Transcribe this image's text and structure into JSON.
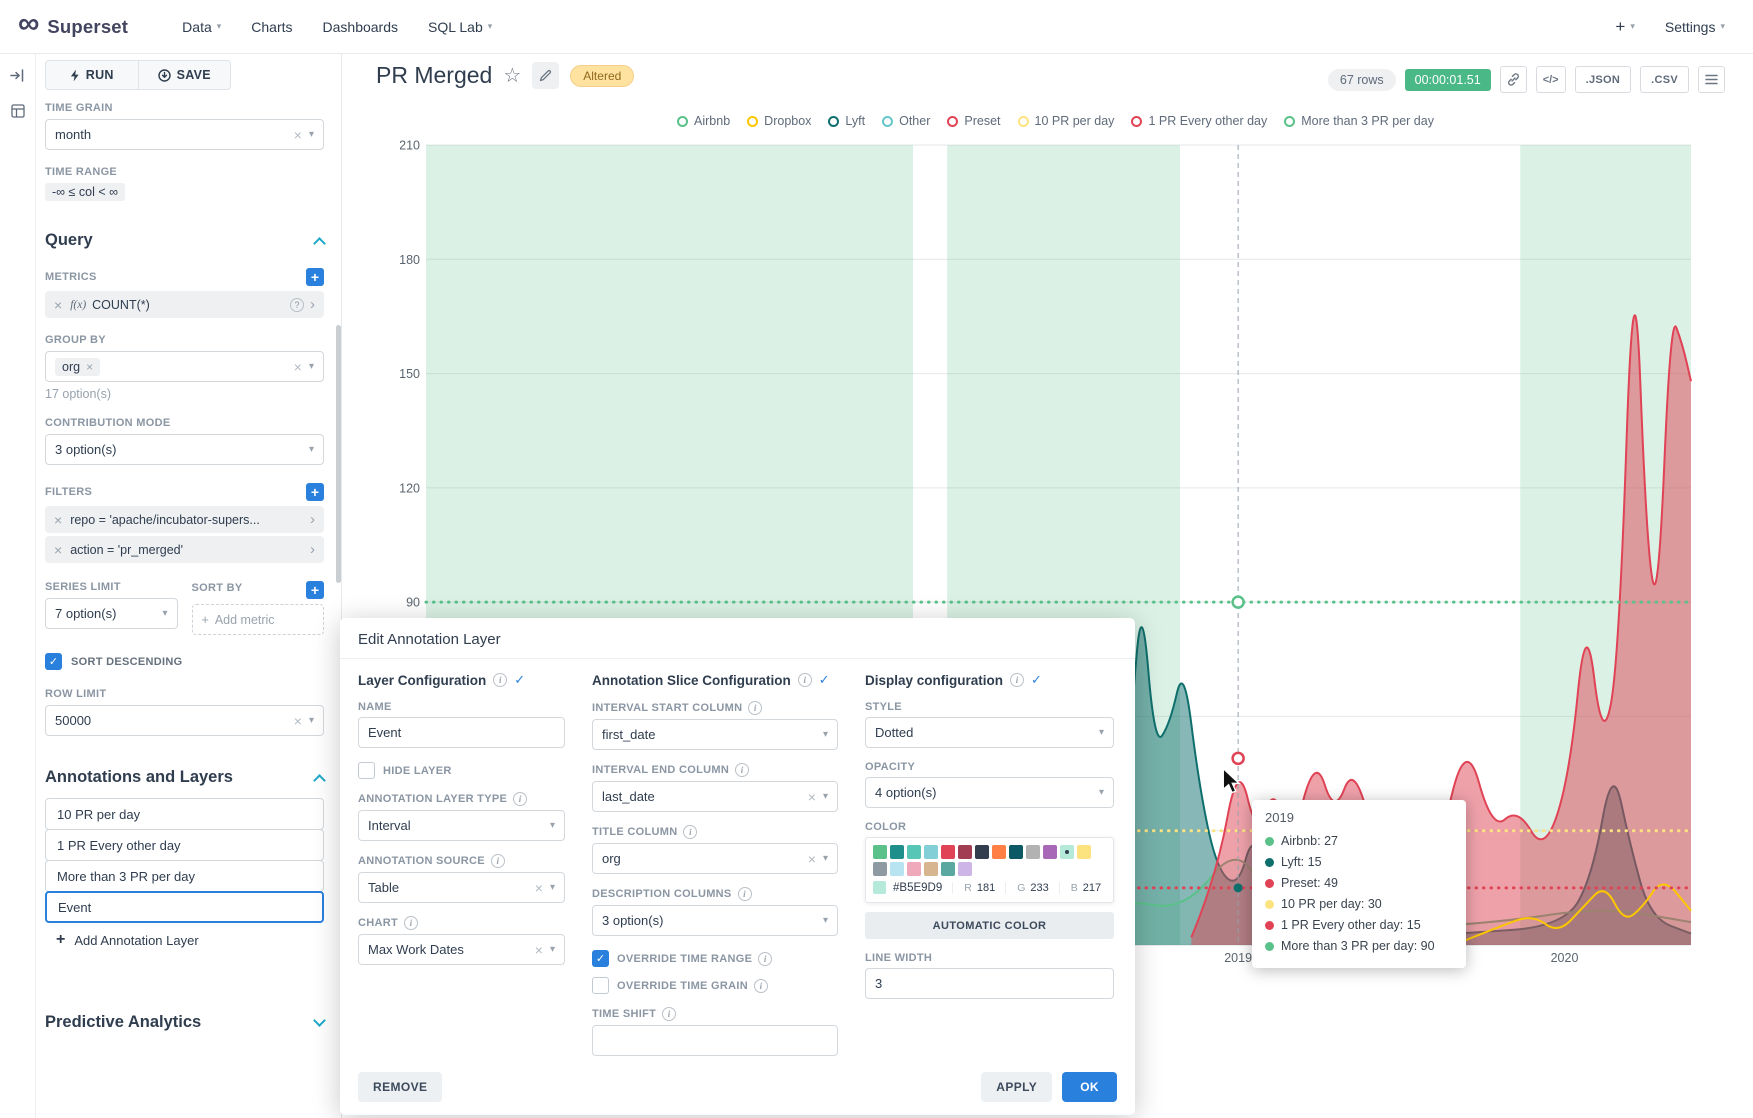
{
  "navbar": {
    "brand": "Superset",
    "menus": [
      "Data",
      "Charts",
      "Dashboards",
      "SQL Lab"
    ],
    "menu_carets": [
      true,
      false,
      false,
      true
    ],
    "plus_label": "+",
    "settings_label": "Settings"
  },
  "panel": {
    "run_label": "RUN",
    "save_label": "SAVE",
    "time_grain_label": "TIME GRAIN",
    "time_grain_value": "month",
    "time_range_label": "TIME RANGE",
    "time_range_value": "-∞ ≤ col < ∞",
    "query_title": "Query",
    "metrics_label": "METRICS",
    "metric_fx": "f(x)",
    "metric_value": "COUNT(*)",
    "group_by_label": "GROUP BY",
    "group_by_tag": "org",
    "group_by_hint": "17 option(s)",
    "contribution_label": "CONTRIBUTION MODE",
    "contribution_value": "3 option(s)",
    "filters_label": "FILTERS",
    "filters": [
      "repo = 'apache/incubator-supers...",
      "action = 'pr_merged'"
    ],
    "series_limit_label": "SERIES LIMIT",
    "series_limit_value": "7 option(s)",
    "sort_by_label": "SORT BY",
    "sort_by_placeholder": "Add metric",
    "sort_descending_label": "SORT DESCENDING",
    "sort_descending_checked": true,
    "row_limit_label": "ROW LIMIT",
    "row_limit_value": "50000",
    "annotations_title": "Annotations and Layers",
    "annotation_layers": [
      "10 PR per day",
      "1 PR Every other day",
      "More than 3 PR per day",
      "Event"
    ],
    "selected_annotation_layer": "Event",
    "add_layer_label": "Add Annotation Layer",
    "predictive_title": "Predictive Analytics"
  },
  "header": {
    "title": "PR Merged",
    "altered_badge": "Altered",
    "rows_badge": "67 rows",
    "timer_badge": "00:00:01.51",
    "json_button": ".JSON",
    "csv_button": ".CSV"
  },
  "chart_data": {
    "type": "line",
    "title": "PR Merged",
    "ylim": [
      0,
      210
    ],
    "y_ticks": [
      210,
      180,
      150,
      120,
      90
    ],
    "x_ticks": [
      {
        "label": "2019",
        "x": 0.642
      },
      {
        "label": "2020",
        "x": 0.9
      }
    ],
    "legend": [
      {
        "label": "Airbnb",
        "color": "#5ac189"
      },
      {
        "label": "Dropbox",
        "color": "#fcc700"
      },
      {
        "label": "Lyft",
        "color": "#0f6f6d"
      },
      {
        "label": "Other",
        "color": "#66c7c9"
      },
      {
        "label": "Preset",
        "color": "#e04355"
      },
      {
        "label": "10 PR per day",
        "color": "#fde380"
      },
      {
        "label": "1 PR Every other day",
        "color": "#e04355"
      },
      {
        "label": "More than 3 PR per day",
        "color": "#5ac189"
      }
    ],
    "annotation_bands": {
      "color": "#5ac189",
      "opacity": 0.22,
      "ranges": [
        [
          0,
          0.385
        ],
        [
          0.412,
          0.596
        ],
        [
          0.865,
          1
        ]
      ]
    },
    "annotation_lines": [
      {
        "label": "More than 3 PR per day",
        "value": 90,
        "color": "#5ac189"
      },
      {
        "label": "10 PR per day",
        "value": 30,
        "color": "#fde380"
      },
      {
        "label": "1 PR Every other day",
        "value": 15,
        "color": "#e04355"
      }
    ],
    "series": [
      {
        "name": "Lyft",
        "color": "#0f6f6d",
        "type": "area",
        "fill_opacity": 0.5,
        "points": [
          [
            0.5,
            1
          ],
          [
            0.535,
            3
          ],
          [
            0.549,
            20
          ],
          [
            0.558,
            62
          ],
          [
            0.566,
            92
          ],
          [
            0.576,
            52
          ],
          [
            0.588,
            58
          ],
          [
            0.599,
            74
          ],
          [
            0.611,
            42
          ],
          [
            0.625,
            20
          ],
          [
            0.642,
            15
          ],
          [
            0.654,
            30
          ],
          [
            0.667,
            14
          ],
          [
            0.685,
            5
          ],
          [
            0.75,
            2
          ],
          [
            0.82,
            3
          ],
          [
            0.9,
            5
          ],
          [
            0.922,
            18
          ],
          [
            0.938,
            48
          ],
          [
            0.952,
            26
          ],
          [
            0.968,
            7
          ],
          [
            1,
            3
          ]
        ]
      },
      {
        "name": "Airbnb",
        "color": "#5ac189",
        "type": "line",
        "fill_opacity": 0.12,
        "points": [
          [
            0,
            2
          ],
          [
            0.1,
            2
          ],
          [
            0.225,
            2
          ],
          [
            0.24,
            7
          ],
          [
            0.255,
            2
          ],
          [
            0.33,
            3
          ],
          [
            0.355,
            5
          ],
          [
            0.368,
            38
          ],
          [
            0.381,
            100
          ],
          [
            0.393,
            34
          ],
          [
            0.405,
            10
          ],
          [
            0.45,
            6
          ],
          [
            0.55,
            12
          ],
          [
            0.6,
            9
          ],
          [
            0.642,
            27
          ],
          [
            0.67,
            8
          ],
          [
            0.75,
            4
          ],
          [
            0.85,
            6
          ],
          [
            0.93,
            10
          ],
          [
            1,
            6
          ]
        ]
      },
      {
        "name": "Preset",
        "color": "#e04355",
        "type": "area",
        "fill_opacity": 0.5,
        "points": [
          [
            0.605,
            2
          ],
          [
            0.625,
            18
          ],
          [
            0.642,
            49
          ],
          [
            0.657,
            28
          ],
          [
            0.67,
            42
          ],
          [
            0.684,
            26
          ],
          [
            0.703,
            50
          ],
          [
            0.718,
            34
          ],
          [
            0.734,
            48
          ],
          [
            0.755,
            20
          ],
          [
            0.778,
            34
          ],
          [
            0.8,
            24
          ],
          [
            0.822,
            55
          ],
          [
            0.843,
            30
          ],
          [
            0.863,
            36
          ],
          [
            0.884,
            24
          ],
          [
            0.904,
            44
          ],
          [
            0.917,
            88
          ],
          [
            0.93,
            52
          ],
          [
            0.943,
            74
          ],
          [
            0.955,
            190
          ],
          [
            0.965,
            104
          ],
          [
            0.974,
            88
          ],
          [
            0.984,
            166
          ],
          [
            0.993,
            158
          ],
          [
            1,
            148
          ]
        ]
      },
      {
        "name": "Dropbox",
        "color": "#fcc700",
        "type": "line",
        "fill_opacity": 0,
        "points": [
          [
            0.82,
            1
          ],
          [
            0.85,
            5
          ],
          [
            0.875,
            8
          ],
          [
            0.895,
            3
          ],
          [
            0.915,
            10
          ],
          [
            0.932,
            16
          ],
          [
            0.947,
            6
          ],
          [
            0.962,
            10
          ],
          [
            0.978,
            18
          ],
          [
            1,
            9
          ]
        ]
      }
    ],
    "hover_line_x": 0.642,
    "hover_markers": [
      {
        "value": 90,
        "color": "#5ac189",
        "ring": true
      },
      {
        "value": 49,
        "color": "#e04355",
        "ring": true
      },
      {
        "value": 15,
        "color": "#0f6f6d",
        "ring": false
      }
    ]
  },
  "tooltip": {
    "title": "2019",
    "rows": [
      {
        "label": "Airbnb",
        "value": "27",
        "color": "#5ac189"
      },
      {
        "label": "Lyft",
        "value": "15",
        "color": "#0f6f6d"
      },
      {
        "label": "Preset",
        "value": "49",
        "color": "#e04355"
      },
      {
        "label": "10 PR per day",
        "value": "30",
        "color": "#fde380"
      },
      {
        "label": "1 PR Every other day",
        "value": "15",
        "color": "#e04355"
      },
      {
        "label": "More than 3 PR per day",
        "value": "90",
        "color": "#5ac189"
      }
    ]
  },
  "modal": {
    "title": "Edit Annotation Layer",
    "layer_config": {
      "title": "Layer Configuration",
      "name_label": "NAME",
      "name_value": "Event",
      "hide_layer_label": "HIDE LAYER",
      "hide_layer_checked": false,
      "type_label": "ANNOTATION LAYER TYPE",
      "type_value": "Interval",
      "source_label": "ANNOTATION SOURCE",
      "source_value": "Table",
      "chart_label": "CHART",
      "chart_value": "Max Work Dates"
    },
    "slice_config": {
      "title": "Annotation Slice Configuration",
      "interval_start_label": "INTERVAL START COLUMN",
      "interval_start_value": "first_date",
      "interval_end_label": "INTERVAL END COLUMN",
      "interval_end_value": "last_date",
      "title_column_label": "TITLE COLUMN",
      "title_column_value": "org",
      "description_columns_label": "DESCRIPTION COLUMNS",
      "description_columns_value": "3 option(s)",
      "override_time_range_label": "OVERRIDE TIME RANGE",
      "override_time_range_checked": true,
      "override_time_grain_label": "OVERRIDE TIME GRAIN",
      "override_time_grain_checked": false,
      "time_shift_label": "TIME SHIFT",
      "time_shift_value": ""
    },
    "display_config": {
      "title": "Display configuration",
      "style_label": "STYLE",
      "style_value": "Dotted",
      "opacity_label": "OPACITY",
      "opacity_value": "4 option(s)",
      "color_label": "COLOR",
      "swatch_rows": [
        [
          "#5AC189",
          "#1F8F8B",
          "#58C6B7",
          "#82CFD8",
          "#E04355",
          "#A23C52",
          "#323E4E",
          "#FF7F44",
          "#0B5A66",
          "#B2B2B2",
          "#A868B7",
          "#B5E9D9",
          "#FDE380"
        ],
        [
          "#8E9BA3",
          "#B8E3F0",
          "#F0A8BB",
          "#D6B58F",
          "#5BA8A0",
          "#CDB5E8"
        ]
      ],
      "selected_color": "#B5E9D9",
      "hex_value": "#B5E9D9",
      "rgb": {
        "r_label": "R",
        "r": "181",
        "g_label": "G",
        "g": "233",
        "b_label": "B",
        "b": "217"
      },
      "automatic_color_label": "AUTOMATIC COLOR",
      "line_width_label": "LINE WIDTH",
      "line_width_value": "3"
    },
    "remove_label": "REMOVE",
    "apply_label": "APPLY",
    "ok_label": "OK"
  },
  "icons": {
    "infinity": "∞",
    "caret_down": "▾",
    "clear_x": "×",
    "check": "✓",
    "star": "☆",
    "chevron_right": "›",
    "code": "</>",
    "plus": "+",
    "help": "?",
    "info": "i"
  },
  "colors": {
    "accent": "#2a80dd",
    "timer_green": "#4ab887",
    "band_green": "#5ac189"
  }
}
